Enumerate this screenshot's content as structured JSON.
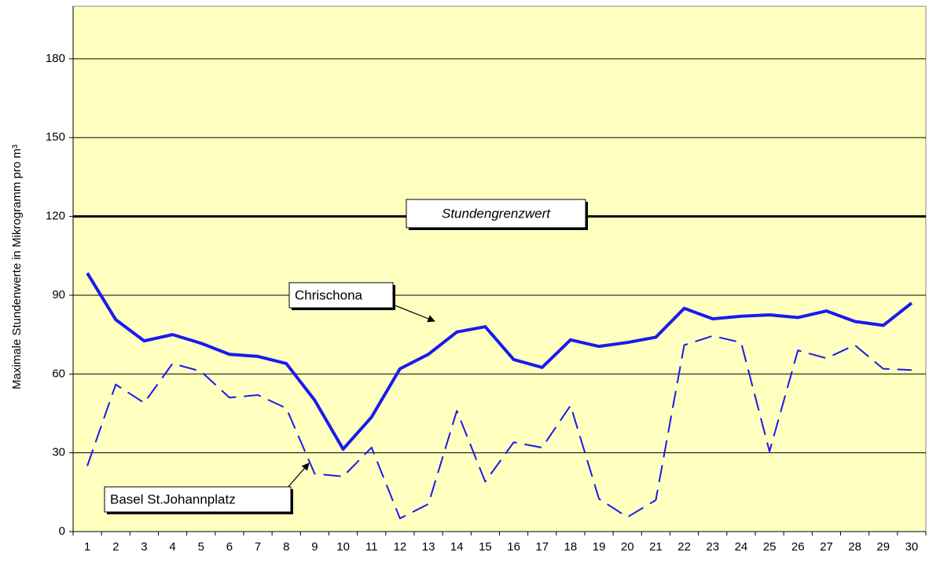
{
  "chart_data": {
    "type": "line",
    "y_label": "Maximale Stundenwerte in Mikrogramm pro m³",
    "categories": [
      "1",
      "2",
      "3",
      "4",
      "5",
      "6",
      "7",
      "8",
      "9",
      "10",
      "11",
      "12",
      "13",
      "14",
      "15",
      "16",
      "17",
      "18",
      "19",
      "20",
      "21",
      "22",
      "23",
      "24",
      "25",
      "26",
      "27",
      "28",
      "29",
      "30"
    ],
    "series": [
      {
        "name": "Chrischona",
        "color": "#1a1aee",
        "style": "solid",
        "values": [
          98.4,
          80.7,
          72.6,
          75,
          71.7,
          67.5,
          66.7,
          64,
          50,
          31.4,
          43.6,
          62,
          67.5,
          76,
          78,
          65.5,
          62.5,
          73,
          70.5,
          72,
          74,
          85,
          81,
          82,
          82.5,
          81.5,
          84,
          80,
          78.5,
          87
        ]
      },
      {
        "name": "Basel St.Johannplatz",
        "color": "#1a1aee",
        "style": "dashed",
        "values": [
          25,
          56,
          49,
          64,
          61,
          51,
          52,
          47,
          22,
          21,
          32,
          5,
          10.5,
          46,
          19,
          34,
          32,
          48,
          12.5,
          5.5,
          12,
          71,
          74.5,
          72,
          30.5,
          69,
          66,
          71,
          62,
          61.5
        ]
      }
    ],
    "threshold": {
      "value": 120,
      "label": "Stundengrenzwert"
    },
    "ylim": [
      0,
      200
    ],
    "yticks": [
      0,
      30,
      60,
      90,
      120,
      150,
      180
    ],
    "grid": true,
    "plot_background": "#ffffc0"
  }
}
